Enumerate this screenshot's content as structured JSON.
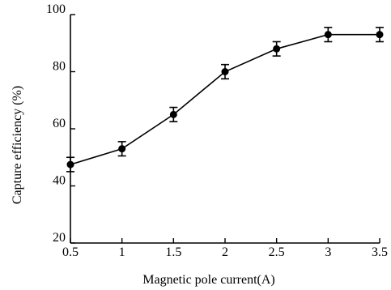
{
  "chart_data": {
    "type": "line",
    "xlabel": "Magnetic pole current(A)",
    "ylabel": "Capture efficiency (%)",
    "xlim": [
      0.5,
      3.5
    ],
    "ylim": [
      20,
      100
    ],
    "x_ticks": [
      "0.5",
      "1",
      "1.5",
      "2",
      "2.5",
      "3",
      "3.5"
    ],
    "y_ticks": [
      "20",
      "40",
      "60",
      "80",
      "100"
    ],
    "grid": false,
    "series": [
      {
        "x": [
          0.5,
          1,
          1.5,
          2,
          2.5,
          3,
          3.5
        ],
        "values": [
          47.5,
          53,
          65,
          80,
          88,
          93,
          93
        ],
        "error": [
          2.5,
          2.5,
          2.5,
          2.5,
          2.5,
          2.5,
          2.5
        ],
        "marker": "circle",
        "color": "#000000"
      }
    ]
  }
}
